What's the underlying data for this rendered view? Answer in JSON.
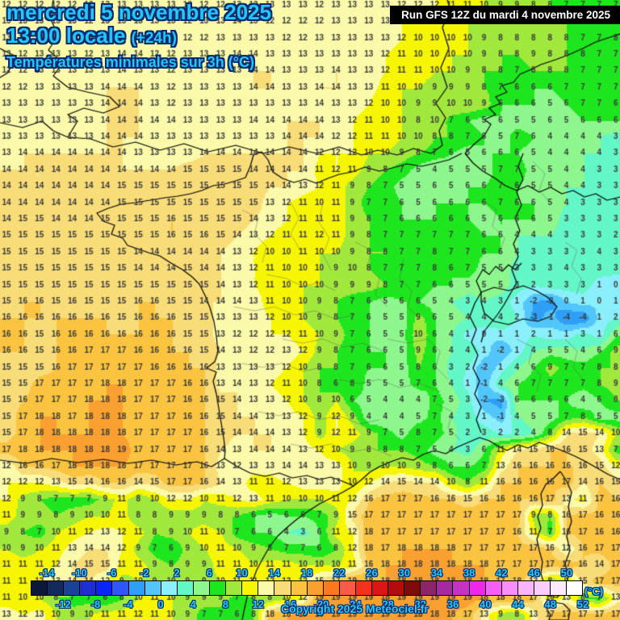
{
  "header": {
    "date": "mercredi 5 novembre 2025",
    "time": "13:00 locale",
    "offset": "(+24h)",
    "variable": "Températures minimales sur 3h (°C)",
    "run": "Run GFS 12Z du mardi 4 novembre 2025"
  },
  "footer": {
    "copyright": "Copyright 2025 Meteociel.fr",
    "unit": "(°C)"
  },
  "scale": {
    "min": -16,
    "max": 52,
    "step": 2,
    "top_labels": [
      -14,
      -10,
      -6,
      -2,
      2,
      6,
      10,
      14,
      18,
      22,
      26,
      30,
      34,
      38,
      42,
      46,
      50
    ],
    "bottom_labels": [
      -12,
      -8,
      -4,
      0,
      4,
      8,
      12,
      16,
      20,
      24,
      28,
      32,
      36,
      40,
      44,
      48,
      52
    ],
    "colors": [
      "#0b1839",
      "#122a5b",
      "#1a4397",
      "#1d2fd0",
      "#0b24f7",
      "#2f56fa",
      "#2f9ef7",
      "#52c5fa",
      "#8aeffb",
      "#63f6c7",
      "#8df78d",
      "#1ee61e",
      "#a0e83c",
      "#f6f604",
      "#fafaaa",
      "#f8dc78",
      "#fac440",
      "#f9a030",
      "#f97820",
      "#fa5a45",
      "#f3311c",
      "#db1414",
      "#b20d0d",
      "#800b0b",
      "#8c2568",
      "#a52a9f",
      "#c433c4",
      "#ee26ee",
      "#f55ff5",
      "#f88cf8",
      "#fab4fa",
      "#fcccfc",
      "#fde9fd",
      "#ffffff"
    ]
  },
  "map": {
    "cols": 38,
    "rows": 38,
    "values": [
      [
        12,
        12,
        12,
        12,
        12,
        12,
        12,
        13,
        13,
        13,
        13,
        13,
        12,
        12,
        13,
        12,
        13,
        13,
        13,
        12,
        13,
        13,
        13,
        13,
        12,
        12,
        12,
        11,
        11,
        10,
        9,
        9,
        8,
        8,
        7,
        7,
        7,
        7
      ],
      [
        13,
        13,
        13,
        13,
        13,
        12,
        13,
        13,
        13,
        13,
        13,
        12,
        13,
        13,
        14,
        13,
        12,
        12,
        12,
        12,
        13,
        13,
        13,
        13,
        12,
        11,
        11,
        10,
        10,
        10,
        9,
        9,
        8,
        8,
        8,
        7,
        7,
        7
      ],
      [
        13,
        13,
        13,
        13,
        13,
        13,
        12,
        13,
        14,
        13,
        13,
        12,
        12,
        13,
        13,
        13,
        13,
        12,
        12,
        13,
        13,
        13,
        13,
        13,
        12,
        10,
        10,
        10,
        10,
        9,
        8,
        8,
        8,
        8,
        8,
        7,
        7,
        8
      ],
      [
        13,
        12,
        13,
        13,
        13,
        12,
        13,
        14,
        14,
        12,
        12,
        13,
        13,
        13,
        14,
        14,
        13,
        13,
        13,
        13,
        13,
        13,
        13,
        12,
        11,
        10,
        10,
        10,
        10,
        9,
        8,
        8,
        9,
        8,
        8,
        8,
        7,
        7
      ],
      [
        12,
        12,
        13,
        13,
        13,
        13,
        13,
        14,
        13,
        13,
        12,
        13,
        13,
        13,
        13,
        14,
        14,
        13,
        13,
        13,
        14,
        13,
        13,
        12,
        11,
        11,
        10,
        10,
        9,
        8,
        8,
        7,
        8,
        8,
        8,
        7,
        7,
        7
      ],
      [
        12,
        12,
        13,
        13,
        13,
        13,
        14,
        14,
        14,
        13,
        12,
        13,
        13,
        13,
        13,
        14,
        14,
        13,
        13,
        14,
        14,
        13,
        13,
        11,
        10,
        10,
        9,
        9,
        9,
        8,
        7,
        6,
        6,
        6,
        7,
        7,
        7,
        7
      ],
      [
        13,
        13,
        13,
        13,
        13,
        13,
        14,
        14,
        14,
        13,
        12,
        13,
        13,
        13,
        13,
        13,
        13,
        13,
        13,
        14,
        13,
        13,
        12,
        10,
        10,
        9,
        9,
        10,
        10,
        9,
        6,
        6,
        6,
        5,
        6,
        7,
        7,
        6
      ],
      [
        13,
        13,
        13,
        13,
        13,
        13,
        14,
        14,
        14,
        14,
        14,
        13,
        13,
        13,
        13,
        14,
        14,
        14,
        14,
        14,
        13,
        12,
        11,
        10,
        10,
        8,
        10,
        7,
        6,
        5,
        6,
        5,
        5,
        6,
        5,
        6,
        6,
        6
      ],
      [
        13,
        13,
        13,
        13,
        13,
        13,
        14,
        14,
        14,
        13,
        13,
        13,
        13,
        13,
        13,
        13,
        13,
        14,
        14,
        14,
        12,
        12,
        11,
        11,
        10,
        10,
        8,
        8,
        7,
        6,
        5,
        7,
        6,
        4,
        4,
        4,
        4,
        3
      ],
      [
        13,
        14,
        14,
        14,
        14,
        14,
        14,
        14,
        13,
        13,
        13,
        13,
        14,
        14,
        14,
        14,
        14,
        14,
        14,
        12,
        12,
        12,
        10,
        10,
        9,
        8,
        7,
        6,
        5,
        6,
        6,
        6,
        5,
        4,
        4,
        4,
        4,
        3
      ],
      [
        14,
        14,
        14,
        14,
        14,
        14,
        14,
        14,
        14,
        14,
        14,
        15,
        15,
        15,
        15,
        14,
        14,
        14,
        14,
        11,
        12,
        11,
        9,
        8,
        7,
        5,
        4,
        5,
        5,
        5,
        7,
        7,
        5,
        5,
        4,
        4,
        3,
        3
      ],
      [
        14,
        14,
        14,
        14,
        14,
        14,
        14,
        15,
        15,
        15,
        15,
        15,
        15,
        15,
        15,
        15,
        14,
        14,
        13,
        12,
        11,
        9,
        8,
        7,
        5,
        5,
        6,
        5,
        6,
        6,
        7,
        6,
        5,
        5,
        4,
        4,
        3,
        3
      ],
      [
        14,
        14,
        14,
        14,
        14,
        14,
        14,
        15,
        15,
        15,
        15,
        15,
        15,
        15,
        15,
        15,
        13,
        12,
        11,
        10,
        11,
        9,
        7,
        7,
        6,
        5,
        6,
        6,
        6,
        6,
        7,
        6,
        6,
        5,
        4,
        3,
        3,
        3
      ],
      [
        14,
        15,
        15,
        14,
        14,
        14,
        15,
        15,
        15,
        15,
        16,
        15,
        15,
        15,
        15,
        14,
        13,
        12,
        11,
        11,
        11,
        9,
        8,
        7,
        6,
        6,
        6,
        6,
        6,
        5,
        6,
        6,
        6,
        5,
        3,
        3,
        3,
        3
      ],
      [
        15,
        15,
        15,
        15,
        15,
        15,
        15,
        15,
        15,
        15,
        16,
        15,
        16,
        15,
        14,
        13,
        12,
        11,
        11,
        12,
        11,
        9,
        8,
        7,
        7,
        7,
        7,
        7,
        7,
        6,
        6,
        4,
        4,
        4,
        3,
        3,
        3,
        2
      ],
      [
        15,
        15,
        15,
        15,
        15,
        15,
        15,
        15,
        14,
        14,
        14,
        14,
        14,
        14,
        13,
        12,
        10,
        10,
        11,
        10,
        10,
        9,
        8,
        8,
        7,
        7,
        8,
        7,
        7,
        6,
        6,
        4,
        3,
        3,
        3,
        3,
        4,
        3
      ],
      [
        15,
        15,
        15,
        15,
        15,
        15,
        15,
        15,
        14,
        14,
        14,
        15,
        14,
        14,
        13,
        12,
        11,
        10,
        10,
        10,
        9,
        10,
        8,
        7,
        7,
        7,
        8,
        6,
        7,
        5,
        5,
        3,
        3,
        3,
        4,
        3,
        3,
        3
      ],
      [
        15,
        15,
        15,
        15,
        15,
        15,
        15,
        15,
        15,
        15,
        15,
        15,
        15,
        14,
        13,
        12,
        11,
        10,
        10,
        10,
        9,
        9,
        9,
        8,
        7,
        7,
        6,
        6,
        5,
        5,
        5,
        3,
        2,
        3,
        3,
        3,
        1,
        0
      ],
      [
        15,
        16,
        16,
        15,
        16,
        15,
        15,
        15,
        16,
        16,
        15,
        15,
        14,
        14,
        14,
        13,
        11,
        10,
        10,
        9,
        8,
        7,
        6,
        5,
        6,
        6,
        5,
        4,
        3,
        4,
        3,
        1,
        -2,
        -3,
        0,
        1,
        0,
        1
      ],
      [
        16,
        16,
        16,
        16,
        16,
        16,
        16,
        15,
        16,
        16,
        16,
        15,
        15,
        13,
        13,
        13,
        12,
        10,
        10,
        9,
        8,
        7,
        6,
        5,
        5,
        9,
        6,
        5,
        4,
        4,
        4,
        2,
        -3,
        -1,
        -4,
        -4,
        1,
        2
      ],
      [
        16,
        16,
        15,
        16,
        16,
        16,
        16,
        16,
        16,
        16,
        16,
        15,
        15,
        13,
        12,
        12,
        12,
        12,
        11,
        10,
        9,
        7,
        6,
        5,
        5,
        10,
        6,
        4,
        1,
        0,
        1,
        1,
        2,
        1,
        1,
        3,
        1,
        6
      ],
      [
        16,
        16,
        15,
        16,
        16,
        17,
        17,
        17,
        16,
        16,
        16,
        16,
        15,
        14,
        13,
        12,
        12,
        13,
        12,
        9,
        8,
        7,
        6,
        6,
        5,
        9,
        6,
        4,
        4,
        1,
        -2,
        1,
        4,
        5,
        5,
        4,
        6,
        9
      ],
      [
        15,
        15,
        15,
        16,
        17,
        17,
        17,
        17,
        17,
        16,
        16,
        16,
        16,
        13,
        13,
        13,
        13,
        12,
        10,
        8,
        8,
        7,
        6,
        6,
        5,
        8,
        6,
        3,
        2,
        -2,
        1,
        4,
        6,
        9,
        7,
        7,
        8,
        8
      ],
      [
        15,
        15,
        17,
        17,
        17,
        17,
        18,
        18,
        17,
        17,
        17,
        16,
        16,
        13,
        14,
        13,
        12,
        11,
        10,
        8,
        6,
        8,
        5,
        5,
        5,
        7,
        6,
        4,
        1,
        -1,
        4,
        6,
        7,
        7,
        7,
        7,
        8,
        9
      ],
      [
        15,
        16,
        17,
        17,
        17,
        18,
        18,
        18,
        17,
        17,
        17,
        16,
        16,
        15,
        14,
        13,
        13,
        12,
        10,
        8,
        10,
        6,
        5,
        4,
        4,
        4,
        7,
        5,
        3,
        -2,
        -3,
        6,
        6,
        6,
        6,
        4,
        6,
        8
      ],
      [
        15,
        17,
        18,
        18,
        17,
        18,
        18,
        18,
        17,
        17,
        17,
        16,
        16,
        15,
        14,
        14,
        13,
        13,
        12,
        9,
        12,
        9,
        4,
        4,
        4,
        5,
        7,
        4,
        3,
        1,
        -1,
        4,
        5,
        5,
        7,
        8,
        5,
        5
      ],
      [
        15,
        17,
        18,
        18,
        18,
        18,
        18,
        18,
        17,
        17,
        17,
        17,
        16,
        15,
        14,
        14,
        14,
        13,
        12,
        9,
        12,
        11,
        9,
        7,
        5,
        8,
        7,
        5,
        2,
        3,
        2,
        2,
        4,
        8,
        14,
        15,
        14,
        10
      ],
      [
        17,
        18,
        18,
        18,
        18,
        18,
        18,
        19,
        17,
        17,
        17,
        17,
        16,
        14,
        13,
        14,
        14,
        14,
        13,
        12,
        10,
        9,
        8,
        8,
        8,
        7,
        5,
        4,
        3,
        6,
        11,
        14,
        15,
        16,
        16,
        15,
        13,
        7
      ],
      [
        12,
        16,
        16,
        17,
        18,
        18,
        18,
        18,
        17,
        17,
        17,
        17,
        16,
        13,
        12,
        13,
        13,
        14,
        14,
        13,
        13,
        10,
        9,
        10,
        10,
        9,
        8,
        6,
        6,
        7,
        13,
        16,
        16,
        16,
        16,
        16,
        15,
        12
      ],
      [
        12,
        12,
        12,
        13,
        15,
        14,
        16,
        16,
        14,
        15,
        17,
        17,
        16,
        14,
        13,
        11,
        11,
        12,
        13,
        13,
        13,
        10,
        12,
        14,
        15,
        14,
        14,
        10,
        8,
        11,
        16,
        16,
        16,
        16,
        17,
        14,
        16,
        15
      ],
      [
        12,
        9,
        8,
        7,
        7,
        7,
        9,
        11,
        8,
        10,
        12,
        12,
        10,
        11,
        12,
        13,
        11,
        10,
        10,
        10,
        11,
        12,
        16,
        17,
        17,
        17,
        16,
        16,
        15,
        16,
        16,
        16,
        16,
        17,
        13,
        11,
        17,
        16
      ],
      [
        11,
        9,
        9,
        8,
        9,
        10,
        10,
        11,
        8,
        8,
        9,
        9,
        9,
        8,
        8,
        6,
        5,
        6,
        6,
        7,
        9,
        15,
        17,
        17,
        17,
        17,
        17,
        17,
        17,
        17,
        17,
        17,
        9,
        8,
        16,
        17,
        16,
        16
      ],
      [
        9,
        8,
        7,
        10,
        11,
        12,
        13,
        12,
        11,
        8,
        9,
        10,
        11,
        10,
        7,
        6,
        6,
        4,
        3,
        6,
        11,
        12,
        18,
        17,
        17,
        17,
        17,
        17,
        17,
        17,
        17,
        16,
        11,
        7,
        16,
        17,
        16,
        16
      ],
      [
        10,
        9,
        10,
        11,
        13,
        14,
        14,
        12,
        9,
        7,
        6,
        9,
        10,
        11,
        10,
        9,
        8,
        7,
        7,
        6,
        8,
        12,
        18,
        17,
        18,
        18,
        18,
        18,
        17,
        17,
        17,
        17,
        17,
        16,
        12,
        16,
        17,
        17
      ],
      [
        11,
        11,
        11,
        12,
        14,
        15,
        15,
        11,
        11,
        9,
        8,
        9,
        9,
        11,
        11,
        10,
        11,
        11,
        10,
        10,
        10,
        11,
        16,
        18,
        18,
        18,
        18,
        18,
        18,
        18,
        17,
        17,
        17,
        17,
        17,
        16,
        14,
        17
      ],
      [
        11,
        11,
        12,
        13,
        14,
        14,
        12,
        9,
        10,
        9,
        10,
        9,
        9,
        10,
        11,
        11,
        12,
        12,
        12,
        15,
        17,
        19,
        18,
        18,
        18,
        18,
        18,
        18,
        18,
        18,
        17,
        18,
        13,
        8,
        9,
        15,
        17,
        17
      ],
      [
        11,
        10,
        10,
        8,
        7,
        7,
        6,
        8,
        10,
        11,
        10,
        9,
        9,
        9,
        7,
        8,
        8,
        10,
        12,
        19,
        19,
        19,
        19,
        18,
        19,
        19,
        19,
        19,
        19,
        18,
        18,
        18,
        17,
        10,
        13,
        8,
        7,
        13
      ],
      [
        13,
        12,
        13,
        10,
        9,
        10,
        11,
        11,
        12,
        11,
        10,
        9,
        7,
        7,
        6,
        8,
        18,
        18,
        19,
        19,
        19,
        19,
        19,
        19,
        19,
        18,
        18,
        18,
        17,
        13,
        9,
        8,
        13,
        17,
        17,
        17,
        17,
        17
      ]
    ]
  }
}
